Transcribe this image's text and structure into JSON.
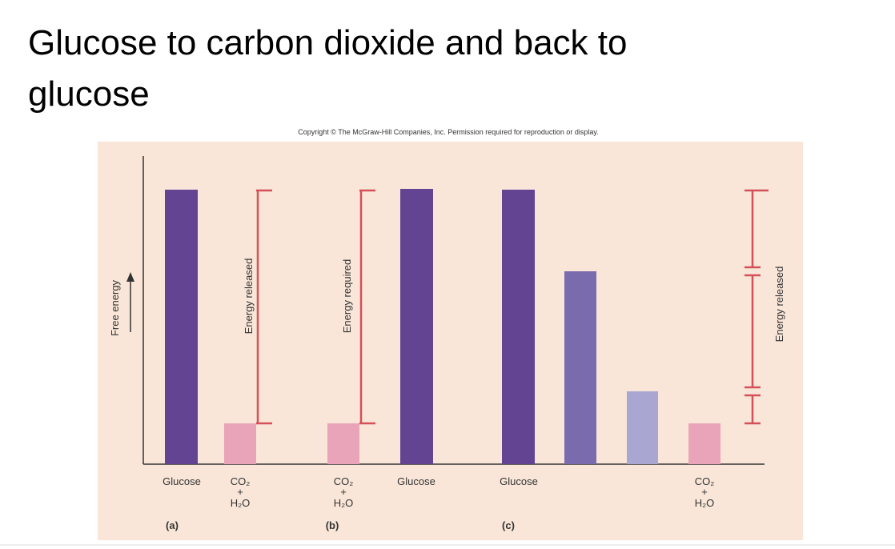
{
  "title": "Glucose to carbon dioxide and back to glucose",
  "copyright": "Copyright © The McGraw-Hill Companies, Inc. Permission required for reproduction or display.",
  "axis_label": "Free energy",
  "panels": [
    {
      "label": "(a)",
      "bars": [
        "Glucose",
        {
          "top": "CO₂",
          "plus": "+",
          "bottom": "H₂O"
        }
      ],
      "bracket": "Energy released"
    },
    {
      "label": "(b)",
      "bars": [
        {
          "top": "CO₂",
          "plus": "+",
          "bottom": "H₂O"
        },
        "Glucose"
      ],
      "bracket": "Energy required"
    },
    {
      "label": "(c)",
      "bars": [
        "Glucose",
        {
          "top": "CO₂",
          "plus": "+",
          "bottom": "H₂O"
        }
      ],
      "bracket": "Energy released"
    }
  ]
}
